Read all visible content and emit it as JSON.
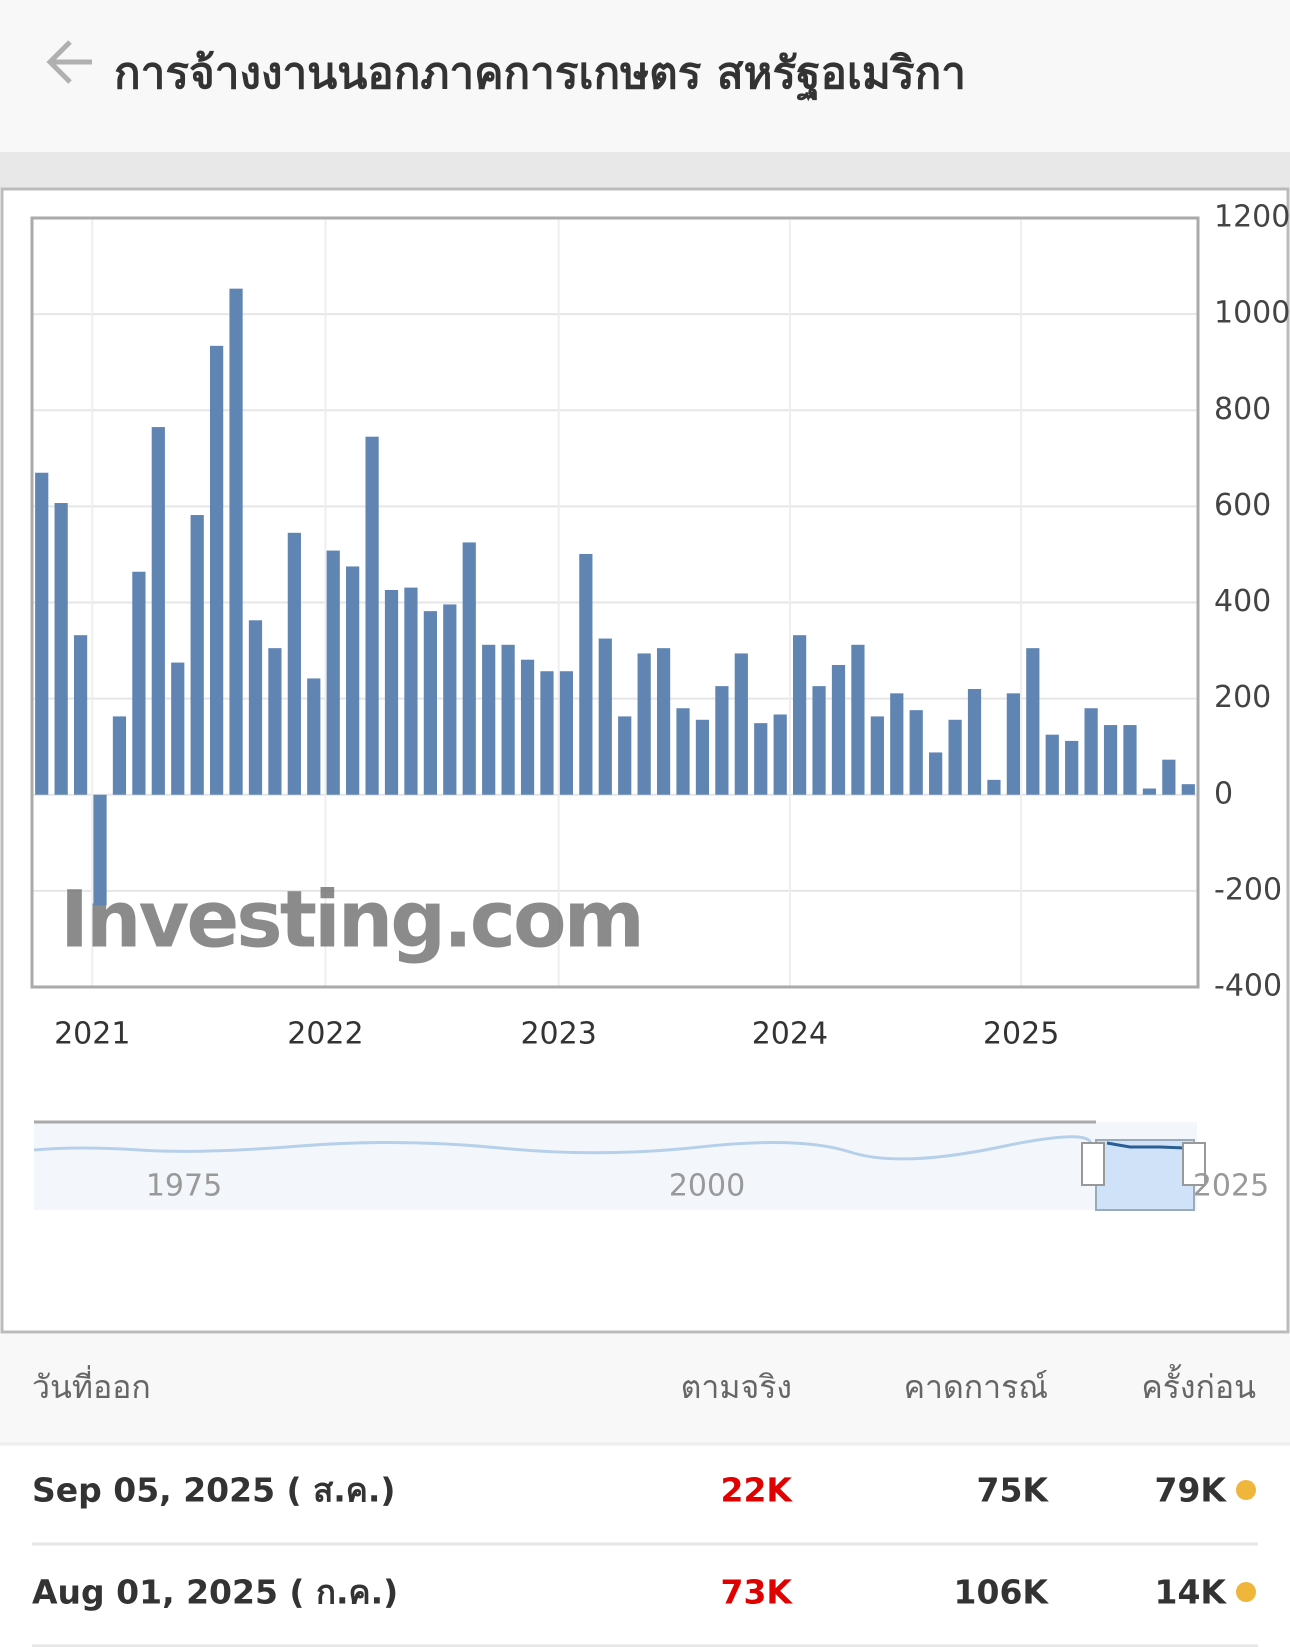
{
  "header": {
    "title": "การจ้างงานนอกภาคการเกษตร สหรัฐอเมริกา"
  },
  "chart_data": {
    "type": "bar",
    "categories": [
      null,
      null,
      null,
      null,
      null,
      null,
      null,
      null,
      null,
      null,
      null,
      null,
      null,
      null,
      null,
      null,
      null,
      null,
      null,
      null,
      null,
      null,
      null,
      null,
      null,
      null,
      null,
      null,
      null,
      null,
      null,
      null,
      null,
      null,
      null,
      null,
      null,
      null,
      null,
      null,
      null,
      null,
      null,
      null,
      null,
      null,
      null,
      null,
      null,
      null,
      null,
      null,
      null,
      null,
      null,
      null,
      null,
      null,
      null,
      null
    ],
    "values": [
      670,
      607,
      332,
      -230,
      163,
      464,
      765,
      275,
      582,
      934,
      1053,
      363,
      305,
      545,
      242,
      508,
      475,
      745,
      426,
      431,
      382,
      396,
      525,
      312,
      312,
      281,
      257,
      257,
      501,
      325,
      163,
      294,
      305,
      180,
      156,
      226,
      294,
      149,
      167,
      332,
      226,
      270,
      312,
      163,
      211,
      176,
      88,
      156,
      220,
      31,
      211,
      305,
      125,
      112,
      180,
      145,
      145,
      13,
      73,
      22
    ],
    "color": "#6085b3",
    "xlim": [
      -0.5,
      59.5
    ],
    "xticks": [
      {
        "value": 2.6,
        "label": "2021"
      },
      {
        "value": 14.6,
        "label": "2022"
      },
      {
        "value": 26.6,
        "label": "2023"
      },
      {
        "value": 38.5,
        "label": "2024"
      },
      {
        "value": 50.4,
        "label": "2025"
      }
    ],
    "ylim": [
      -400,
      1200
    ],
    "yticks": [
      -400,
      -200,
      0,
      200,
      400,
      600,
      800,
      1000,
      1200
    ],
    "grid": true,
    "watermark": "Investing.com",
    "navigator_labels": [
      "1975",
      "2000",
      "2025"
    ]
  },
  "table": {
    "headers": [
      "วันที่ออก",
      "ตามจริง",
      "คาดการณ์",
      "ครั้งก่อน"
    ],
    "rows": [
      [
        "Sep 05, 2025 ( ส.ค.)",
        "22K",
        "75K",
        "79K"
      ],
      [
        "Aug 01, 2025 ( ก.ค.)",
        "73K",
        "106K",
        "14K"
      ]
    ]
  }
}
